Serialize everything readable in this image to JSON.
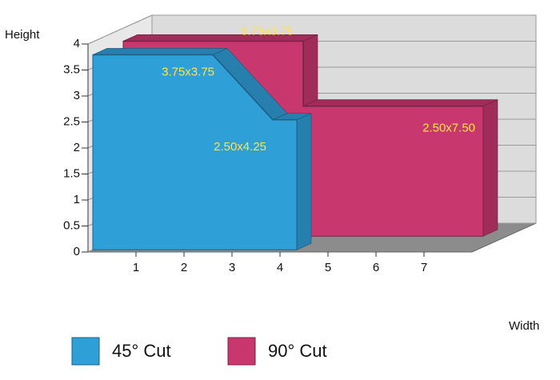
{
  "chart_data": {
    "type": "area3d",
    "xlabel": "Width",
    "ylabel": "Height",
    "series": [
      {
        "name": "45° Cut",
        "color": "#2f9fd8",
        "x": [
          0,
          2.5,
          3.75,
          4.25
        ],
        "values": [
          3.75,
          3.75,
          2.5,
          2.5
        ]
      },
      {
        "name": "90° Cut",
        "color": "#c8386f",
        "x": [
          0,
          3.75,
          3.75,
          7.5
        ],
        "values": [
          3.75,
          3.75,
          2.5,
          2.5
        ]
      }
    ],
    "annotations": [
      "3.75x3.75",
      "3.75x3.75",
      "2.50x4.25",
      "2.50x7.50"
    ],
    "xlim": [
      0,
      8
    ],
    "xticks": [
      1,
      2,
      3,
      4,
      5,
      6,
      7
    ],
    "ylim": [
      0,
      4
    ],
    "yticks": [
      0,
      0.5,
      1,
      1.5,
      2,
      2.5,
      3,
      3.5,
      4
    ],
    "grid": true
  }
}
